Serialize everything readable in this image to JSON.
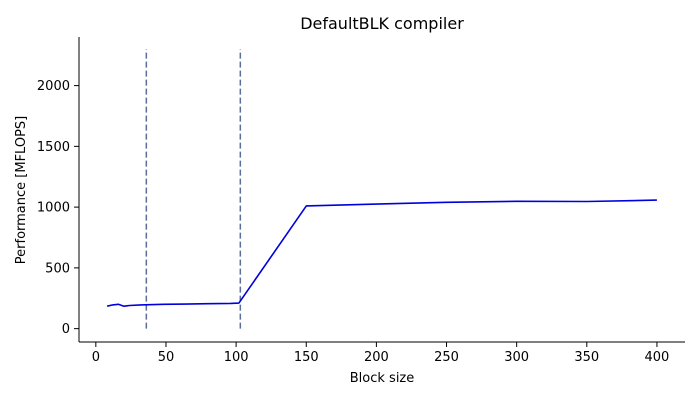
{
  "chart_data": {
    "type": "line",
    "title": "DefaultBLK compiler",
    "xlabel": "Block size",
    "ylabel": "Performance [MFLOPS]",
    "xlim": [
      -12,
      420
    ],
    "ylim": [
      -110,
      2400
    ],
    "xticks": [
      0,
      50,
      100,
      150,
      200,
      250,
      300,
      350,
      400
    ],
    "yticks": [
      0,
      500,
      1000,
      1500,
      2000
    ],
    "grid": false,
    "legend": "none",
    "series": [
      {
        "color": "#0000dd",
        "x": [
          8,
          12,
          16,
          20,
          24,
          32,
          48,
          64,
          80,
          96,
          102,
          150,
          200,
          250,
          300,
          350,
          400
        ],
        "y": [
          185,
          195,
          200,
          185,
          190,
          195,
          200,
          202,
          205,
          208,
          210,
          1010,
          1025,
          1040,
          1048,
          1046,
          1058
        ]
      }
    ],
    "vlines": [
      {
        "x": 36,
        "y_range": [
          0,
          2300
        ],
        "color": "#5a6e99",
        "style": "dashed"
      },
      {
        "x": 103,
        "y_range": [
          0,
          2300
        ],
        "color": "#5a6e99",
        "style": "dashed"
      }
    ]
  }
}
